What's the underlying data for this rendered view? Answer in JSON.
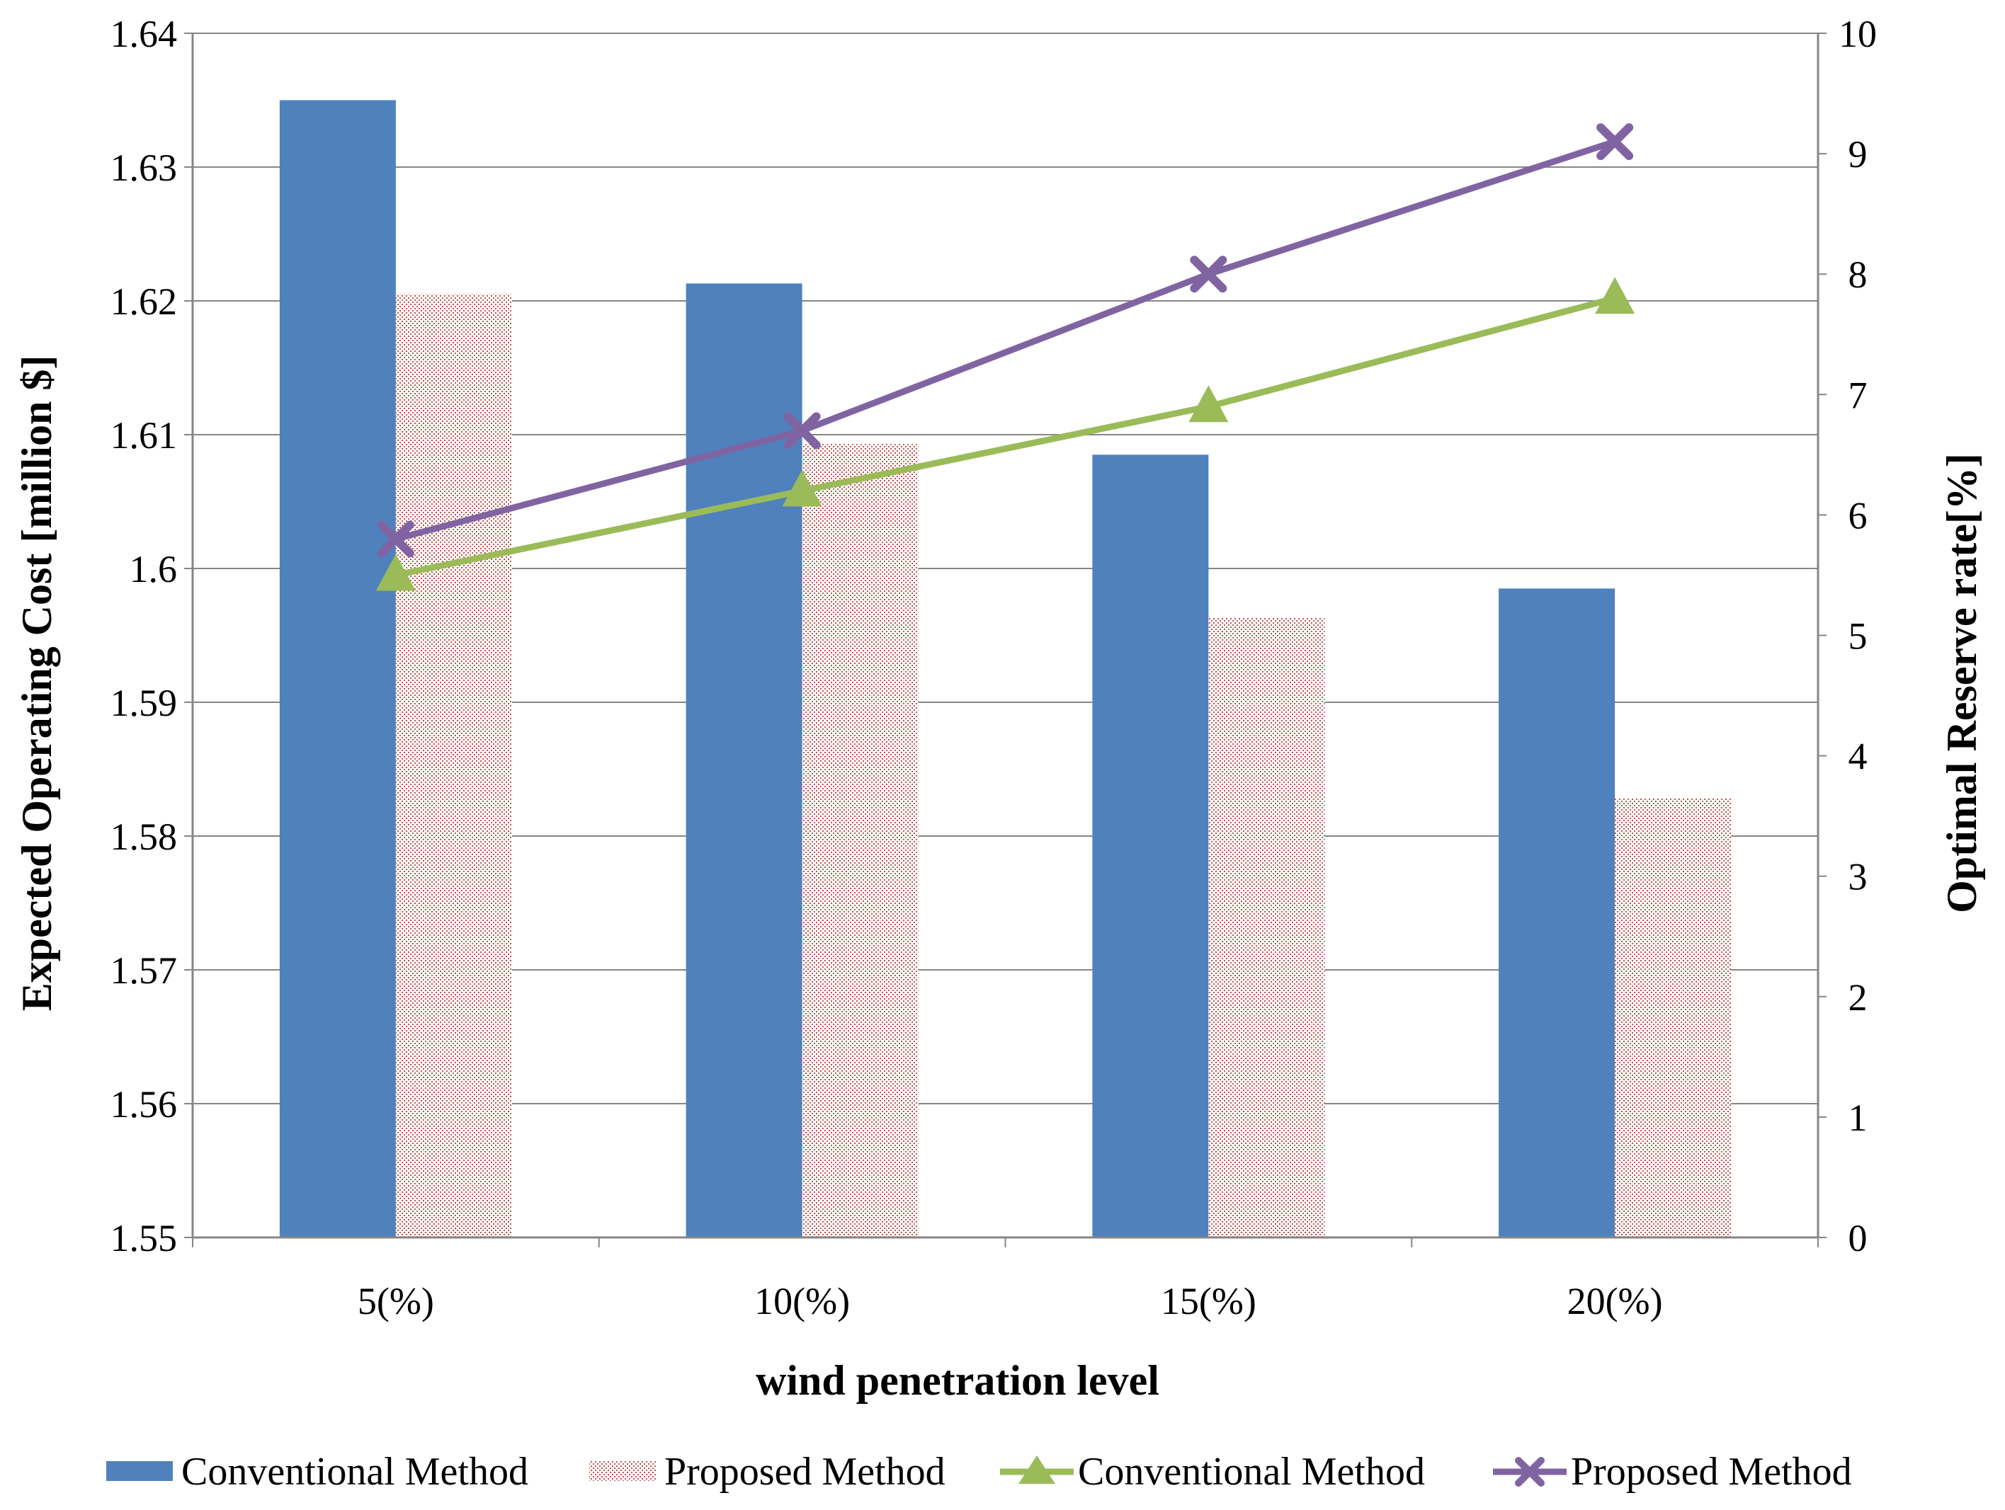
{
  "chart_data": {
    "type": "bar+line",
    "categories": [
      "5(%)",
      "10(%)",
      "15(%)",
      "20(%)"
    ],
    "xlabel": "wind penetration level",
    "ylabel": "Expected Operating Cost [million $]",
    "y2label": "Optimal Reserve rate[%]",
    "ylim": [
      1.55,
      1.64
    ],
    "y2lim": [
      0,
      10
    ],
    "yticks": [
      "1.55",
      "1.56",
      "1.57",
      "1.58",
      "1.59",
      "1.6",
      "1.61",
      "1.62",
      "1.63",
      "1.64"
    ],
    "y2ticks": [
      "0",
      "1",
      "2",
      "3",
      "4",
      "5",
      "6",
      "7",
      "8",
      "9",
      "10"
    ],
    "bar_series": [
      {
        "name": "Conventional Method",
        "values": [
          1.635,
          1.6213,
          1.6085,
          1.5985
        ],
        "color": "#4F81BD",
        "style": "solid"
      },
      {
        "name": "Proposed Method",
        "values": [
          1.6205,
          1.6093,
          1.5963,
          1.5828
        ],
        "color": "#C0504D",
        "style": "dotted"
      }
    ],
    "line_series": [
      {
        "name": "Conventional Method",
        "values": [
          5.5,
          6.2,
          6.9,
          7.8
        ],
        "color": "#9BBB59",
        "marker": "triangle"
      },
      {
        "name": "Proposed Method",
        "values": [
          5.8,
          6.7,
          8.0,
          9.1
        ],
        "color": "#8064A2",
        "marker": "x"
      }
    ],
    "legend_position": "bottom",
    "grid": true
  }
}
